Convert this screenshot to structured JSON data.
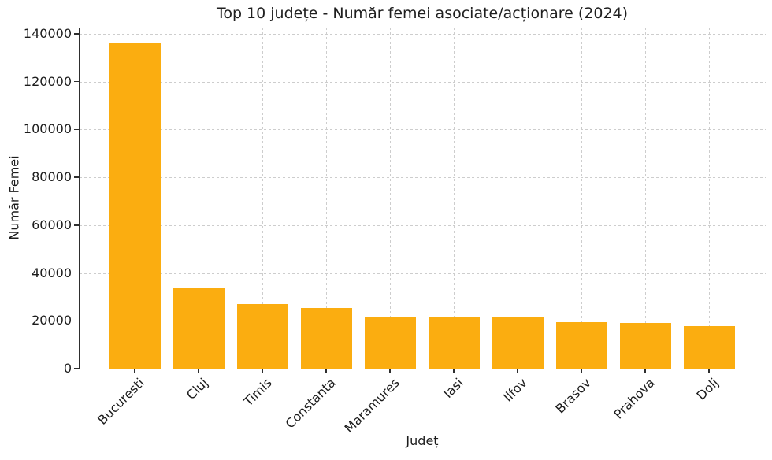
{
  "chart_data": {
    "type": "bar",
    "title": "Top 10 județe - Număr femei asociate/acționare (2024)",
    "xlabel": "Județ",
    "ylabel": "Număr Femei",
    "categories": [
      "Bucuresti",
      "Cluj",
      "Timis",
      "Constanta",
      "Maramures",
      "Iasi",
      "Ilfov",
      "Brasov",
      "Prahova",
      "Dolj"
    ],
    "values": [
      135900,
      34000,
      27000,
      25200,
      21700,
      21500,
      21300,
      19300,
      19000,
      17900
    ],
    "yticks": [
      0,
      20000,
      40000,
      60000,
      80000,
      100000,
      120000,
      140000
    ],
    "ylim": [
      0,
      142600
    ],
    "grid": true,
    "grid_style": "dashed",
    "legend": "none",
    "bar_color": "#FBAD10",
    "grid_color": "#cdcdcd",
    "axis_color": "#2e2e2e",
    "text_color": "#1c1c1c",
    "x_tick_rotation": 45
  }
}
